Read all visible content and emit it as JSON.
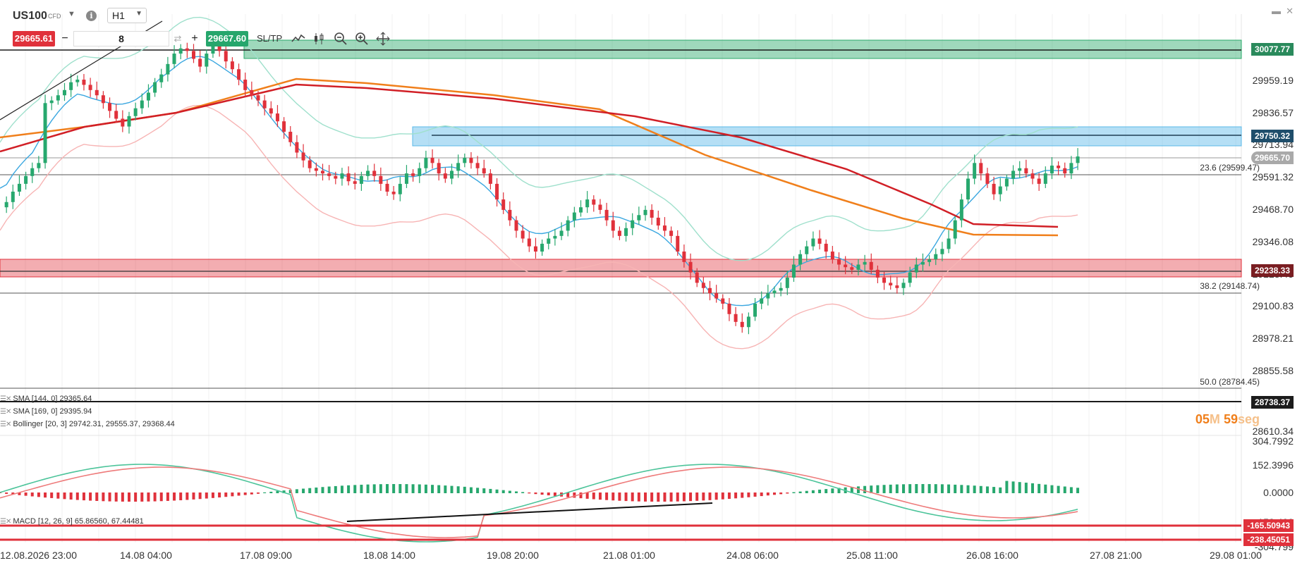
{
  "toolbar": {
    "symbol": "US100",
    "symbol_type": "CFD",
    "timeframe": "H1",
    "sell_price": "29665.61",
    "buy_price": "29667.60",
    "quantity": "8",
    "minus": "−",
    "plus": "+",
    "sltp": "SL/TP",
    "info": "i"
  },
  "window": {
    "minimize": "▬",
    "close": "✕"
  },
  "price_axis": [
    "30081.81",
    "29959.19",
    "29836.57",
    "29713.94",
    "29591.32",
    "29468.70",
    "29346.08",
    "29223.45",
    "29100.83",
    "28978.21",
    "28855.58",
    "28732.96",
    "28610.34"
  ],
  "price_tags": {
    "resist_zone": "30077.77",
    "zone2": "29750.32",
    "current": "29665.70",
    "support_zone": "29238.33",
    "lower_line": "28738.37"
  },
  "fib_labels": {
    "f236": "23.6 (29599.47)",
    "f382": "38.2 (29148.74)",
    "f500": "50.0 (28784.45)"
  },
  "countdown": {
    "minutes": "05",
    "m": "M",
    "seconds": "59",
    "s": "seg"
  },
  "legend": {
    "sma144": "SMA [144, 0] 29365.64",
    "sma169": "SMA [169, 0] 29395.94",
    "bollinger": "Bollinger [20, 3] 29742.31, 29555.37, 29368.44",
    "macd": "MACD [12, 26, 9] 65.86560, 67.44481"
  },
  "macd_axis": [
    "304.7992",
    "152.3996",
    "0.0000",
    "-152.400",
    "-304.799"
  ],
  "macd_tags": {
    "a": "-165.50943",
    "b": "-238.45051"
  },
  "time_axis": [
    "12.08.2026 23:00",
    "14.08 04:00",
    "17.08 09:00",
    "18.08 14:00",
    "19.08 20:00",
    "21.08 01:00",
    "24.08 06:00",
    "25.08 11:00",
    "26.08 16:00",
    "27.08 21:00",
    "29.08 01:00"
  ],
  "colors": {
    "up": "#27a86e",
    "down": "#e0313b",
    "sma144": "#d11f26",
    "sma169": "#f07f1b",
    "boll_mid": "#3aa7e0",
    "boll_up": "#9fe0cc",
    "boll_low": "#f7b4b4",
    "zone_green": "#2aa86a",
    "zone_blue": "#5bb8e8",
    "zone_red": "#e0313b"
  },
  "chart_data": {
    "type": "candlestick",
    "price_range": [
      28610.34,
      30081.81
    ],
    "macd_range": [
      -304.799,
      304.7992
    ],
    "close_path": [
      29470,
      29490,
      29530,
      29560,
      29590,
      29620,
      29640,
      29870,
      29880,
      29900,
      29920,
      29950,
      29960,
      29940,
      29920,
      29900,
      29870,
      29840,
      29810,
      29780,
      29820,
      29850,
      29880,
      29910,
      29950,
      29980,
      30020,
      30060,
      30080,
      30070,
      30040,
      30010,
      30060,
      30100,
      30070,
      30030,
      30000,
      29960,
      29920,
      29900,
      29880,
      29850,
      29830,
      29800,
      29760,
      29720,
      29680,
      29650,
      29620,
      29610,
      29600,
      29590,
      29580,
      29600,
      29570,
      29560,
      29590,
      29610,
      29590,
      29560,
      29530,
      29520,
      29560,
      29600,
      29590,
      29620,
      29660,
      29640,
      29600,
      29580,
      29610,
      29640,
      29660,
      29640,
      29620,
      29600,
      29560,
      29500,
      29460,
      29420,
      29380,
      29350,
      29320,
      29300,
      29330,
      29350,
      29360,
      29380,
      29420,
      29450,
      29470,
      29500,
      29480,
      29460,
      29420,
      29380,
      29360,
      29390,
      29420,
      29440,
      29460,
      29430,
      29400,
      29380,
      29360,
      29300,
      29260,
      29220,
      29180,
      29160,
      29140,
      29120,
      29100,
      29060,
      29030,
      29010,
      29050,
      29100,
      29120,
      29140,
      29150,
      29160,
      29200,
      29250,
      29290,
      29320,
      29350,
      29330,
      29300,
      29270,
      29250,
      29240,
      29230,
      29250,
      29260,
      29230,
      29200,
      29180,
      29170,
      29160,
      29180,
      29220,
      29250,
      29260,
      29270,
      29290,
      29310,
      29350,
      29420,
      29500,
      29580,
      29640,
      29600,
      29560,
      29520,
      29550,
      29580,
      29610,
      29620,
      29600,
      29580,
      29560,
      29600,
      29630,
      29620,
      29600,
      29640,
      29665
    ]
  }
}
